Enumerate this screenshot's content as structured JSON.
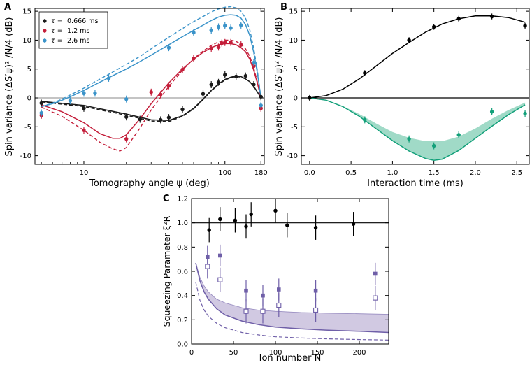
{
  "colors": {
    "black": "#000000",
    "tau1": "#1a1a1a",
    "tau2": "#c41e3a",
    "tau3": "#3a93c9",
    "green": "#13a07a",
    "green_fill": "#8fd3bd",
    "purple": "#6f5fa8",
    "purple_fill": "#c9c0dd",
    "zero_line": "#888888"
  },
  "chart_data": [
    {
      "panel": "A",
      "type": "scatter",
      "xscale": "log",
      "xlim": [
        4.5,
        190
      ],
      "ylim": [
        -11.5,
        15.5
      ],
      "xticks": [
        10,
        100,
        180
      ],
      "xtick_labels": [
        "10",
        "100",
        "180"
      ],
      "yticks": [
        -10,
        -5,
        0,
        5,
        10,
        15
      ],
      "ytick_labels": [
        "-10",
        "-5",
        "0",
        "5",
        "10",
        "15"
      ],
      "xlabel": "Tomography angle ψ (deg)",
      "ylabel": "Spin variance (ΔS′ψ)² /N/4 (dB)",
      "legend_position": "top-left",
      "series": [
        {
          "name": "τ = 0.666 ms",
          "legend_tau": "τ =",
          "legend_val": "0.666 ms",
          "color": "#1a1a1a",
          "x": [
            5,
            10,
            20,
            25,
            35,
            40,
            50,
            70,
            80,
            90,
            100,
            120,
            140,
            160,
            180
          ],
          "y": [
            -0.9,
            -1.8,
            -3.3,
            -3.7,
            -3.8,
            -3.4,
            -2.0,
            0.7,
            2.3,
            2.7,
            4.0,
            3.7,
            3.8,
            2.3,
            0.2
          ],
          "err": 0.6,
          "fit_solid": {
            "x": [
              5,
              10,
              20,
              30,
              40,
              50,
              60,
              70,
              80,
              90,
              100,
              110,
              120,
              130,
              140,
              150,
              160,
              170,
              180
            ],
            "y": [
              -0.6,
              -1.3,
              -2.8,
              -3.8,
              -3.9,
              -3.1,
              -1.8,
              -0.2,
              1.3,
              2.4,
              3.2,
              3.6,
              3.8,
              3.7,
              3.3,
              2.8,
              2.0,
              1.0,
              0.0
            ]
          },
          "fit_dashed": {
            "x": [
              5,
              10,
              20,
              30,
              40,
              50,
              60,
              70,
              80,
              90,
              100,
              110,
              120,
              130,
              140,
              150,
              160,
              170,
              180
            ],
            "y": [
              -0.7,
              -1.5,
              -3.0,
              -4.0,
              -4.1,
              -3.2,
              -1.9,
              -0.3,
              1.2,
              2.3,
              3.1,
              3.5,
              3.7,
              3.6,
              3.3,
              2.8,
              2.0,
              1.0,
              0.0
            ]
          }
        },
        {
          "name": "τ = 1.2 ms",
          "legend_tau": "τ =",
          "legend_val": "1.2 ms",
          "color": "#c41e3a",
          "x": [
            5,
            10,
            20,
            30,
            35,
            40,
            50,
            60,
            80,
            90,
            95,
            100,
            110,
            130,
            160,
            180
          ],
          "y": [
            -3.0,
            -5.6,
            -7.1,
            1.0,
            0.6,
            2.1,
            4.9,
            6.8,
            8.6,
            8.8,
            9.5,
            9.6,
            9.6,
            9.2,
            5.5,
            -1.8
          ],
          "err": 0.6,
          "fit_solid": {
            "x": [
              5,
              7,
              10,
              13,
              16,
              18,
              20,
              25,
              30,
              40,
              50,
              60,
              70,
              80,
              90,
              100,
              110,
              120,
              130,
              140,
              150,
              160,
              170,
              180
            ],
            "y": [
              -1.2,
              -2.4,
              -4.3,
              -6.2,
              -7.0,
              -7.0,
              -6.4,
              -3.6,
              -1.0,
              2.6,
              5.0,
              6.7,
              7.9,
              8.7,
              9.2,
              9.4,
              9.4,
              9.2,
              8.7,
              8.0,
              6.7,
              4.8,
              2.5,
              0.0
            ]
          },
          "fit_dashed": {
            "x": [
              5,
              7,
              10,
              13,
              16,
              18,
              20,
              25,
              30,
              40,
              50,
              60,
              70,
              80,
              90,
              100,
              110,
              120,
              130,
              140,
              150,
              160,
              170,
              180
            ],
            "y": [
              -1.6,
              -3.2,
              -5.6,
              -7.7,
              -8.8,
              -9.2,
              -8.6,
              -5.2,
              -2.1,
              2.0,
              4.8,
              6.8,
              8.1,
              9.1,
              9.7,
              10.0,
              10.0,
              9.8,
              9.3,
              8.5,
              7.2,
              5.2,
              2.7,
              0.0
            ]
          }
        },
        {
          "name": "τ = 2.6 ms",
          "legend_tau": "τ =",
          "legend_val": "2.6 ms",
          "color": "#3a93c9",
          "x": [
            5,
            8,
            10,
            12,
            15,
            20,
            40,
            60,
            80,
            90,
            100,
            110,
            130,
            160,
            180
          ],
          "y": [
            -2.6,
            -0.5,
            0.8,
            0.8,
            3.4,
            -0.2,
            8.7,
            11.3,
            11.7,
            12.3,
            12.5,
            12.1,
            12.6,
            6.1,
            -1.3
          ],
          "err": 0.6,
          "fit_solid": {
            "x": [
              5,
              6,
              7,
              8,
              10,
              12,
              15,
              20,
              25,
              30,
              40,
              50,
              60,
              70,
              80,
              90,
              100,
              110,
              120,
              130,
              140,
              150,
              160,
              170,
              180
            ],
            "y": [
              -1.5,
              -1.0,
              -0.4,
              0.2,
              1.3,
              2.3,
              3.5,
              5.0,
              6.3,
              7.4,
              9.2,
              10.6,
              11.7,
              12.6,
              13.4,
              14.0,
              14.3,
              14.4,
              14.3,
              13.8,
              12.7,
              10.8,
              7.9,
              4.2,
              0.0
            ]
          },
          "fit_dashed": {
            "x": [
              5,
              6,
              7,
              8,
              10,
              12,
              15,
              20,
              25,
              30,
              40,
              50,
              60,
              70,
              80,
              90,
              100,
              110,
              120,
              130,
              140,
              150,
              160,
              170,
              180
            ],
            "y": [
              -1.5,
              -0.9,
              -0.2,
              0.5,
              1.7,
              2.8,
              4.1,
              5.8,
              7.2,
              8.5,
              10.5,
              12.0,
              13.2,
              14.1,
              14.9,
              15.4,
              15.7,
              15.8,
              15.6,
              15.0,
              13.8,
              11.8,
              8.6,
              4.6,
              0.0
            ]
          }
        }
      ]
    },
    {
      "panel": "B",
      "type": "scatter",
      "xlim": [
        -0.1,
        2.65
      ],
      "ylim": [
        -11.5,
        15.5
      ],
      "xticks": [
        0.0,
        0.5,
        1.0,
        1.5,
        2.0,
        2.5
      ],
      "xtick_labels": [
        "0.0",
        "0.5",
        "1.0",
        "1.5",
        "2.0",
        "2.5"
      ],
      "yticks": [
        -10,
        -5,
        0,
        5,
        10,
        15
      ],
      "ytick_labels": [
        "-10",
        "-5",
        "0",
        "5",
        "10",
        "15"
      ],
      "xlabel": "Interaction time (ms)",
      "ylabel": "Spin variance (ΔS′ψ)² /N/4 (dB)",
      "series": [
        {
          "name": "anti-squeezing",
          "color": "#000000",
          "x": [
            0.0,
            0.666,
            1.2,
            1.5,
            1.8,
            2.2,
            2.6
          ],
          "y": [
            0.0,
            4.3,
            10.0,
            12.3,
            13.7,
            14.1,
            12.5
          ],
          "err": 0.5,
          "fit": {
            "x": [
              0.0,
              0.2,
              0.4,
              0.6,
              0.8,
              1.0,
              1.2,
              1.4,
              1.6,
              1.8,
              2.0,
              2.2,
              2.4,
              2.6
            ],
            "y": [
              0.0,
              0.4,
              1.5,
              3.3,
              5.5,
              7.7,
              9.6,
              11.4,
              12.8,
              13.7,
              14.2,
              14.2,
              13.9,
              13.1
            ]
          }
        },
        {
          "name": "squeezing",
          "color": "#13a07a",
          "x": [
            0.666,
            1.2,
            1.5,
            1.8,
            2.2,
            2.6
          ],
          "y": [
            -3.8,
            -7.1,
            -8.3,
            -6.4,
            -2.4,
            -2.7
          ],
          "err": 0.6,
          "fit": {
            "x": [
              0.0,
              0.2,
              0.4,
              0.6,
              0.8,
              1.0,
              1.2,
              1.4,
              1.5,
              1.6,
              1.8,
              2.0,
              2.2,
              2.4,
              2.6
            ],
            "y": [
              0.0,
              -0.4,
              -1.5,
              -3.2,
              -5.3,
              -7.4,
              -9.2,
              -10.5,
              -10.8,
              -10.6,
              -9.1,
              -7.0,
              -4.9,
              -2.9,
              -1.2
            ]
          },
          "band_upper": {
            "x": [
              0.0,
              0.2,
              0.4,
              0.6,
              0.8,
              1.0,
              1.2,
              1.4,
              1.6,
              1.8,
              2.0,
              2.2,
              2.4,
              2.6
            ],
            "y": [
              0.0,
              -0.4,
              -1.4,
              -2.8,
              -4.4,
              -5.9,
              -6.9,
              -7.5,
              -7.5,
              -6.7,
              -5.3,
              -3.6,
              -2.1,
              -0.8
            ]
          }
        }
      ]
    },
    {
      "panel": "C",
      "type": "scatter",
      "xlim": [
        0,
        235
      ],
      "ylim": [
        0,
        1.2
      ],
      "xticks": [
        0,
        50,
        100,
        150,
        200
      ],
      "xtick_labels": [
        "0",
        "50",
        "100",
        "150",
        "200"
      ],
      "yticks": [
        0.0,
        0.2,
        0.4,
        0.6,
        0.8,
        1.0,
        1.2
      ],
      "ytick_labels": [
        "0.0",
        "0.2",
        "0.4",
        "0.6",
        "0.8",
        "1.0",
        "1.2"
      ],
      "xlabel": "Ion number N",
      "ylabel": "Squeezing Parameter ξ²R",
      "series": [
        {
          "name": "black",
          "color": "#000000",
          "x": [
            21,
            34,
            52,
            65,
            71,
            100,
            114,
            148,
            193
          ],
          "y": [
            0.94,
            1.03,
            1.02,
            0.97,
            1.07,
            1.1,
            0.98,
            0.96,
            0.99
          ],
          "err": 0.1
        },
        {
          "name": "filled squares",
          "color": "#6f5fa8",
          "x": [
            19,
            34,
            65,
            85,
            104,
            148,
            219
          ],
          "y": [
            0.72,
            0.73,
            0.44,
            0.4,
            0.45,
            0.44,
            0.58
          ],
          "err": 0.09
        },
        {
          "name": "open squares",
          "color": "#6f5fa8",
          "x": [
            19,
            34,
            65,
            85,
            104,
            148,
            219
          ],
          "y": [
            0.64,
            0.53,
            0.27,
            0.27,
            0.32,
            0.28,
            0.38
          ],
          "err": 0.1
        }
      ],
      "theory_solid": {
        "x": [
          5,
          10,
          15,
          20,
          30,
          40,
          60,
          80,
          100,
          130,
          160,
          200,
          235
        ],
        "y": [
          0.67,
          0.52,
          0.43,
          0.37,
          0.29,
          0.24,
          0.19,
          0.16,
          0.14,
          0.125,
          0.115,
          0.105,
          0.095
        ]
      },
      "theory_dashed": {
        "x": [
          5,
          10,
          15,
          20,
          30,
          40,
          60,
          80,
          100,
          130,
          160,
          200,
          235
        ],
        "y": [
          0.51,
          0.36,
          0.28,
          0.23,
          0.17,
          0.135,
          0.095,
          0.075,
          0.06,
          0.05,
          0.043,
          0.037,
          0.033
        ]
      },
      "band_upper": {
        "x": [
          5,
          10,
          15,
          20,
          30,
          40,
          60,
          80,
          100,
          130,
          160,
          200,
          235
        ],
        "y": [
          0.67,
          0.55,
          0.48,
          0.43,
          0.37,
          0.34,
          0.3,
          0.28,
          0.27,
          0.26,
          0.255,
          0.25,
          0.245
        ]
      }
    }
  ]
}
